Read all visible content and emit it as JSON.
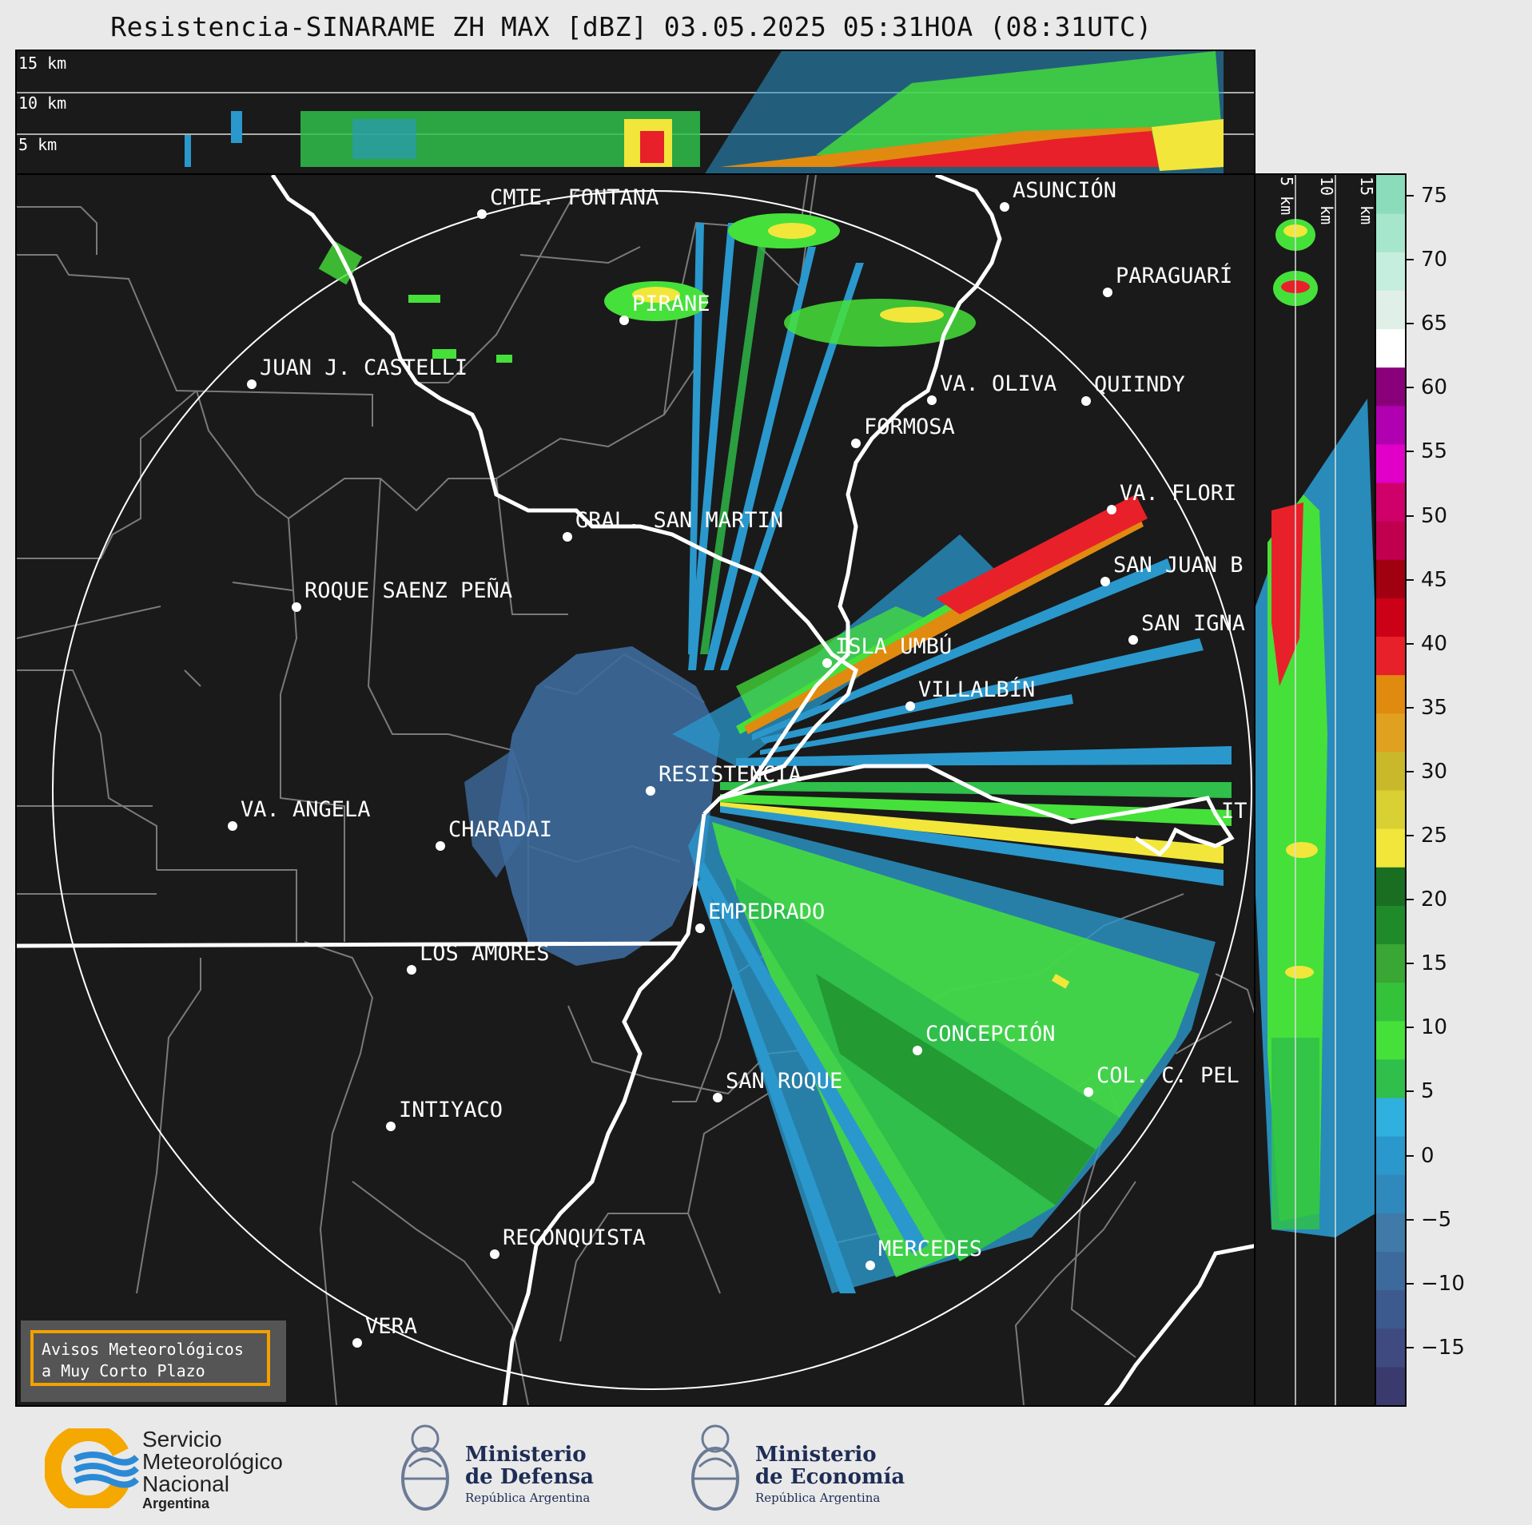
{
  "title": "Resistencia-SINARAME ZH MAX [dBZ] 03.05.2025 05:31HOA (08:31UTC)",
  "top_panel": {
    "levels": [
      "15 km",
      "10 km",
      "5 km"
    ]
  },
  "side_panel": {
    "levels": [
      "5 km",
      "10 km",
      "15 km"
    ]
  },
  "cities": [
    {
      "name": "CMTE. FONTANA"
    },
    {
      "name": "ASUNCIÓN"
    },
    {
      "name": "PARAGUARÍ"
    },
    {
      "name": "PIRANE"
    },
    {
      "name": "JUAN J. CASTELLI"
    },
    {
      "name": "VA. OLIVA"
    },
    {
      "name": "QUIINDY"
    },
    {
      "name": "FORMOSA"
    },
    {
      "name": "VA. FLORI"
    },
    {
      "name": "GRAL. SAN MARTIN"
    },
    {
      "name": "SAN JUAN B"
    },
    {
      "name": "ROQUE SAENZ PEÑA"
    },
    {
      "name": "SAN IGNA"
    },
    {
      "name": "ISLA UMBÚ"
    },
    {
      "name": "VILLALBÍN"
    },
    {
      "name": "RESISTENCIA"
    },
    {
      "name": "VA. ANGELA"
    },
    {
      "name": "CHARADAI"
    },
    {
      "name": "IT"
    },
    {
      "name": "EMPEDRADO"
    },
    {
      "name": "LOS AMORES"
    },
    {
      "name": "CONCEPCIÓN"
    },
    {
      "name": "SAN ROQUE"
    },
    {
      "name": "COL. C. PEL"
    },
    {
      "name": "INTIYACO"
    },
    {
      "name": "RECONQUISTA"
    },
    {
      "name": "MERCEDES"
    },
    {
      "name": "VERA"
    }
  ],
  "colorbar": {
    "unit": "dBZ",
    "ticks": [
      "75",
      "70",
      "65",
      "60",
      "55",
      "50",
      "45",
      "40",
      "35",
      "30",
      "25",
      "20",
      "15",
      "10",
      "5",
      "0",
      "−5",
      "−10",
      "−15"
    ],
    "colors": [
      "#3a3a6e",
      "#3f4a80",
      "#3d5a8e",
      "#3d6a9c",
      "#3f7aa8",
      "#2f89bd",
      "#2a98cc",
      "#2fb0df",
      "#2fbf4a",
      "#46e03a",
      "#33c23a",
      "#3aa633",
      "#1f8a2a",
      "#196e22",
      "#f2e63a",
      "#d9d033",
      "#c9b82a",
      "#e0a020",
      "#e08a10",
      "#e8202a",
      "#cc0016",
      "#a00010",
      "#c0004f",
      "#d0006a",
      "#e000c8",
      "#b000b0",
      "#8a007a",
      "#ffffff",
      "#e0f0e8",
      "#c6eedf",
      "#a5e6cc",
      "#8adcbb"
    ]
  },
  "notice": {
    "line1": "Avisos Meteorológicos",
    "line2": "a Muy Corto Plazo"
  },
  "logos": {
    "smn_line1": "Servicio",
    "smn_line2": "Meteorológico",
    "smn_line3": "Nacional",
    "smn_line4": "Argentina",
    "defensa_line1": "Ministerio",
    "defensa_line2": "de Defensa",
    "defensa_line3": "República Argentina",
    "economia_line1": "Ministerio",
    "economia_line2": "de Economía",
    "economia_line3": "República Argentina"
  }
}
